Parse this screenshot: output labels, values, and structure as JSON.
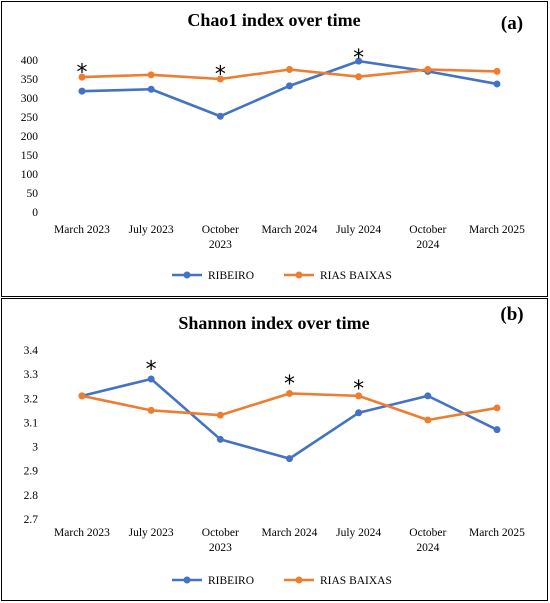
{
  "chart_data": [
    {
      "type": "line",
      "panel_label": "(a)",
      "title": "Chao1 index over time",
      "categories": [
        [
          "March 2023"
        ],
        [
          "July 2023"
        ],
        [
          "October",
          "2023"
        ],
        [
          "March 2024"
        ],
        [
          "July 2024"
        ],
        [
          "October",
          "2024"
        ],
        [
          "March 2025"
        ]
      ],
      "series": [
        {
          "name": "RIBEIRO",
          "color": "#4472C4",
          "values": [
            318,
            323,
            252,
            332,
            397,
            370,
            337
          ]
        },
        {
          "name": "RIAS BAIXAS",
          "color": "#ED7D31",
          "values": [
            355,
            361,
            350,
            375,
            356,
            375,
            370
          ]
        }
      ],
      "ylim": [
        0,
        400
      ],
      "yticks": [
        "0",
        "50",
        "100",
        "150",
        "200",
        "250",
        "300",
        "350",
        "400"
      ],
      "ytick_values": [
        0,
        50,
        100,
        150,
        200,
        250,
        300,
        350,
        400
      ],
      "annotations": [
        {
          "text": "*",
          "category_index": 0,
          "y": 380
        },
        {
          "text": "*",
          "category_index": 2,
          "y": 375
        },
        {
          "text": "*",
          "category_index": 4,
          "y": 418
        }
      ],
      "legend_position": "bottom",
      "grid": false
    },
    {
      "type": "line",
      "panel_label": "(b)",
      "title": "Shannon index over time",
      "categories": [
        [
          "March 2023"
        ],
        [
          "July 2023"
        ],
        [
          "October",
          "2023"
        ],
        [
          "March 2024"
        ],
        [
          "July 2024"
        ],
        [
          "October",
          "2024"
        ],
        [
          "March 2025"
        ]
      ],
      "series": [
        {
          "name": "RIBEIRO",
          "color": "#4472C4",
          "values": [
            3.21,
            3.28,
            3.03,
            2.95,
            3.14,
            3.21,
            3.07
          ]
        },
        {
          "name": "RIAS BAIXAS",
          "color": "#ED7D31",
          "values": [
            3.21,
            3.15,
            3.13,
            3.22,
            3.21,
            3.11,
            3.16
          ]
        }
      ],
      "ylim": [
        2.7,
        3.4
      ],
      "yticks": [
        "2.7",
        "2.8",
        "2.9",
        "3",
        "3.1",
        "3.2",
        "3.3",
        "3.4"
      ],
      "ytick_values": [
        2.7,
        2.8,
        2.9,
        3.0,
        3.1,
        3.2,
        3.3,
        3.4
      ],
      "annotations": [
        {
          "text": "*",
          "category_index": 1,
          "y": 3.34
        },
        {
          "text": "*",
          "category_index": 3,
          "y": 3.28
        },
        {
          "text": "*",
          "category_index": 4,
          "y": 3.26
        }
      ],
      "legend_position": "bottom",
      "grid": false
    }
  ]
}
